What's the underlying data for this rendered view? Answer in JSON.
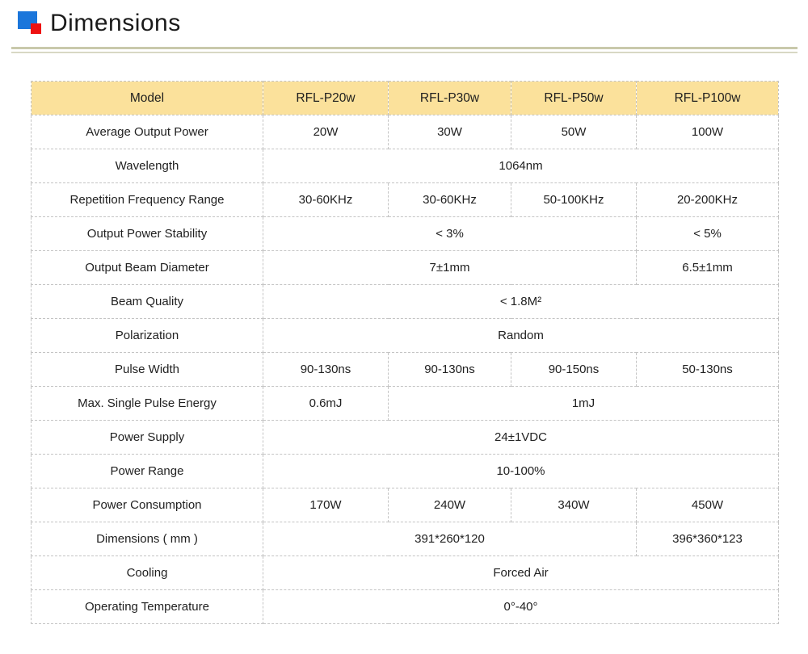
{
  "page": {
    "title": "Dimensions"
  },
  "icon": {
    "blue": "#1B76DB",
    "red": "#EE1111"
  },
  "colors": {
    "header_bg": "#FBE19B",
    "cell_border": "#C4C4C4",
    "rule_top": "#C9C9AB",
    "rule_bottom": "#D8D8C4"
  },
  "table": {
    "header": {
      "label": "Model",
      "columns": [
        "RFL-P20w",
        "RFL-P30w",
        "RFL-P50w",
        "RFL-P100w"
      ]
    },
    "rows": [
      {
        "label": "Average Output Power",
        "cells": [
          {
            "text": "20W",
            "span": 1
          },
          {
            "text": "30W",
            "span": 1
          },
          {
            "text": "50W",
            "span": 1
          },
          {
            "text": "100W",
            "span": 1
          }
        ]
      },
      {
        "label": "Wavelength",
        "cells": [
          {
            "text": "1064nm",
            "span": 4
          }
        ]
      },
      {
        "label": "Repetition Frequency Range",
        "cells": [
          {
            "text": "30-60KHz",
            "span": 1
          },
          {
            "text": "30-60KHz",
            "span": 1
          },
          {
            "text": "50-100KHz",
            "span": 1
          },
          {
            "text": "20-200KHz",
            "span": 1
          }
        ]
      },
      {
        "label": "Output Power Stability",
        "cells": [
          {
            "text": "< 3%",
            "span": 3
          },
          {
            "text": "< 5%",
            "span": 1
          }
        ]
      },
      {
        "label": "Output Beam Diameter",
        "cells": [
          {
            "text": "7±1mm",
            "span": 3
          },
          {
            "text": "6.5±1mm",
            "span": 1
          }
        ]
      },
      {
        "label": "Beam Quality",
        "cells": [
          {
            "text": "< 1.8M²",
            "span": 4
          }
        ]
      },
      {
        "label": "Polarization",
        "cells": [
          {
            "text": "Random",
            "span": 4
          }
        ]
      },
      {
        "label": "Pulse Width",
        "cells": [
          {
            "text": "90-130ns",
            "span": 1
          },
          {
            "text": "90-130ns",
            "span": 1
          },
          {
            "text": "90-150ns",
            "span": 1
          },
          {
            "text": "50-130ns",
            "span": 1
          }
        ]
      },
      {
        "label": "Max. Single Pulse Energy",
        "cells": [
          {
            "text": "0.6mJ",
            "span": 1
          },
          {
            "text": "1mJ",
            "span": 3
          }
        ]
      },
      {
        "label": "Power Supply",
        "cells": [
          {
            "text": "24±1VDC",
            "span": 4
          }
        ]
      },
      {
        "label": "Power Range",
        "cells": [
          {
            "text": "10-100%",
            "span": 4
          }
        ]
      },
      {
        "label": "Power Consumption",
        "cells": [
          {
            "text": "170W",
            "span": 1
          },
          {
            "text": "240W",
            "span": 1
          },
          {
            "text": "340W",
            "span": 1
          },
          {
            "text": "450W",
            "span": 1
          }
        ]
      },
      {
        "label": "Dimensions ( mm )",
        "cells": [
          {
            "text": "391*260*120",
            "span": 3
          },
          {
            "text": "396*360*123",
            "span": 1
          }
        ]
      },
      {
        "label": "Cooling",
        "cells": [
          {
            "text": "Forced Air",
            "span": 4
          }
        ]
      },
      {
        "label": "Operating Temperature",
        "cells": [
          {
            "text": "0°-40°",
            "span": 4
          }
        ]
      }
    ]
  }
}
